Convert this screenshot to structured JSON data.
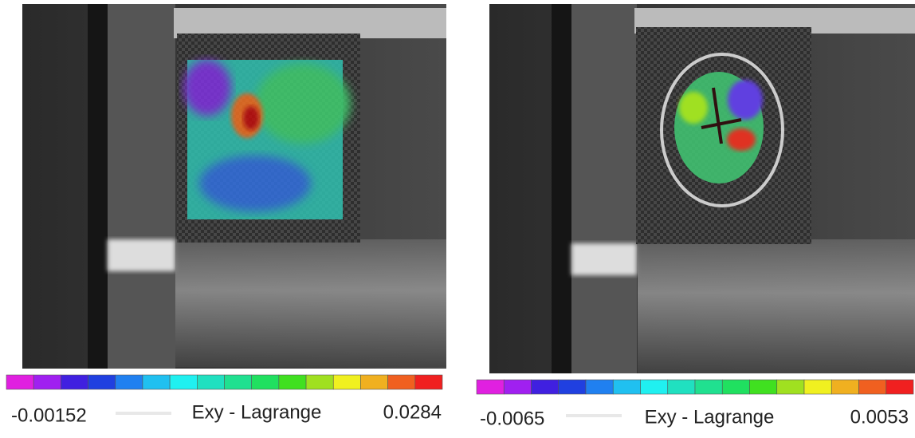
{
  "panels": [
    {
      "min_label": "-0.00152",
      "title": "Exy - Lagrange",
      "max_label": "0.0284"
    },
    {
      "min_label": "-0.0065",
      "title": "Exy - Lagrange",
      "max_label": "0.0053"
    }
  ]
}
